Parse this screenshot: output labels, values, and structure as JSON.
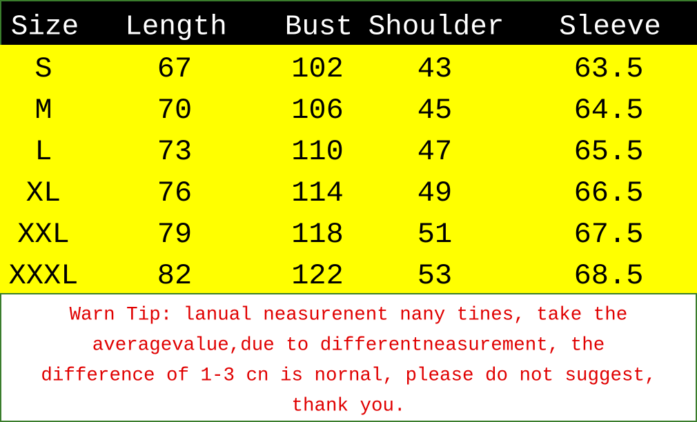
{
  "table": {
    "header": [
      "Size",
      "Length",
      "Bust",
      "Shoulder",
      "Sleeve"
    ],
    "rows": [
      [
        "S",
        67,
        102,
        43,
        63.5
      ],
      [
        "M",
        70,
        106,
        45,
        64.5
      ],
      [
        "L",
        73,
        110,
        47,
        65.5
      ],
      [
        "XL",
        76,
        114,
        49,
        66.5
      ],
      [
        "XXL",
        79,
        118,
        51,
        67.5
      ],
      [
        "XXXL",
        82,
        122,
        53,
        68.5
      ]
    ]
  },
  "note": {
    "lines": [
      "Warn Tip: lanual neasurenent nany tines, take the",
      "averagevalue,due to differentneasurement, the",
      "difference of 1-3 cn is nornal, please do not suggest,",
      "thank you."
    ]
  }
}
